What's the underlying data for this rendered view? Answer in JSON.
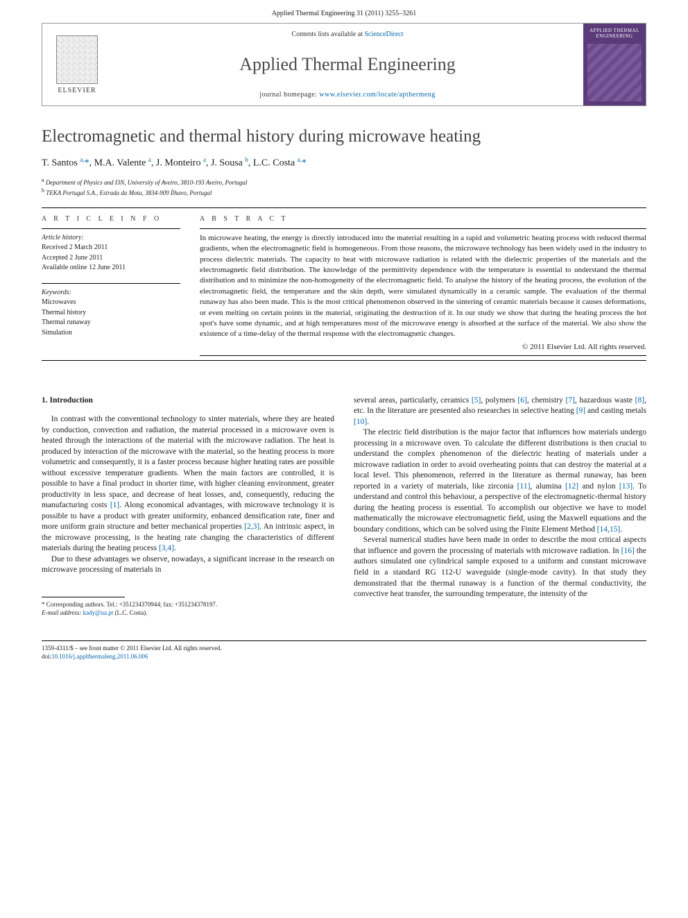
{
  "header_citation": "Applied Thermal Engineering 31 (2011) 3255–3261",
  "banner": {
    "publisher": "ELSEVIER",
    "contents_prefix": "Contents lists available at ",
    "contents_link": "ScienceDirect",
    "journal": "Applied Thermal Engineering",
    "homepage_prefix": "journal homepage: ",
    "homepage_url": "www.elsevier.com/locate/apthermeng",
    "cover_title": "APPLIED THERMAL ENGINEERING"
  },
  "article": {
    "title": "Electromagnetic and thermal history during microwave heating",
    "authors_html": "T. Santos <sup>a,</sup><span class='star'>*</span>, M.A. Valente <sup>a</sup>, J. Monteiro <sup>a</sup>, J. Sousa <sup>b</sup>, L.C. Costa <sup>a,</sup><span class='star'>*</span>",
    "affiliations": [
      "a Department of Physics and I3N, University of Aveiro, 3810-193 Aveiro, Portugal",
      "b TEKA Portugal S.A., Estrada da Mota, 3834-909 Ílhavo, Portugal"
    ]
  },
  "info": {
    "heading": "A R T I C L E   I N F O",
    "history_label": "Article history:",
    "history": [
      "Received 2 March 2011",
      "Accepted 2 June 2011",
      "Available online 12 June 2011"
    ],
    "keywords_label": "Keywords:",
    "keywords": [
      "Microwaves",
      "Thermal history",
      "Thermal runaway",
      "Simulation"
    ]
  },
  "abstract": {
    "heading": "A B S T R A C T",
    "text": "In microwave heating, the energy is directly introduced into the material resulting in a rapid and volumetric heating process with reduced thermal gradients, when the electromagnetic field is homogeneous. From those reasons, the microwave technology has been widely used in the industry to process dielectric materials. The capacity to heat with microwave radiation is related with the dielectric properties of the materials and the electromagnetic field distribution. The knowledge of the permittivity dependence with the temperature is essential to understand the thermal distribution and to minimize the non-homogeneity of the electromagnetic field. To analyse the history of the heating process, the evolution of the electromagnetic field, the temperature and the skin depth, were simulated dynamically in a ceramic sample. The evaluation of the thermal runaway has also been made. This is the most critical phenomenon observed in the sintering of ceramic materials because it causes deformations, or even melting on certain points in the material, originating the destruction of it. In our study we show that during the heating process the hot spot's have some dynamic, and at high temperatures most of the microwave energy is absorbed at the surface of the material. We also show the existence of a time-delay of the thermal response with the electromagnetic changes.",
    "copyright": "© 2011 Elsevier Ltd. All rights reserved."
  },
  "body": {
    "section1_head": "1. Introduction",
    "col1_p1": "In contrast with the conventional technology to sinter materials, where they are heated by conduction, convection and radiation, the material processed in a microwave oven is heated through the interactions of the material with the microwave radiation. The heat is produced by interaction of the microwave with the material, so the heating process is more volumetric and consequently, it is a faster process because higher heating rates are possible without excessive temperature gradients. When the main factors are controlled, it is possible to have a final product in shorter time, with higher cleaning environment, greater productivity in less space, and decrease of heat losses, and, consequently, reducing the manufacturing costs [1]. Along economical advantages, with microwave technology it is possible to have a product with greater uniformity, enhanced densification rate, finer and more uniform grain structure and better mechanical properties [2,3]. An intrinsic aspect, in the microwave processing, is the heating rate changing the characteristics of different materials during the heating process [3,4].",
    "col1_p2": "Due to these advantages we observe, nowadays, a significant increase in the research on microwave processing of materials in",
    "col2_p1": "several areas, particularly, ceramics [5], polymers [6], chemistry [7], hazardous waste [8], etc. In the literature are presented also researches in selective heating [9] and casting metals [10].",
    "col2_p2": "The electric field distribution is the major factor that influences how materials undergo processing in a microwave oven. To calculate the different distributions is then crucial to understand the complex phenomenon of the dielectric heating of materials under a microwave radiation in order to avoid overheating points that can destroy the material at a local level. This phenomenon, referred in the literature as thermal runaway, has been reported in a variety of materials, like zirconia [11], alumina [12] and nylon [13]. To understand and control this behaviour, a perspective of the electromagnetic-thermal history during the heating process is essential. To accomplish our objective we have to model mathematically the microwave electromagnetic field, using the Maxwell equations and the boundary conditions, which can be solved using the Finite Element Method [14,15].",
    "col2_p3": "Several numerical studies have been made in order to describe the most critical aspects that influence and govern the processing of materials with microwave radiation. In [16] the authors simulated one cylindrical sample exposed to a uniform and constant microwave field in a standard RG 112-U waveguide (single-mode cavity). In that study they demonstrated that the thermal runaway is a function of the thermal conductivity, the convective heat transfer, the surrounding temperature, the intensity of the"
  },
  "footnote": {
    "corr_label": "* Corresponding authors. Tel.: +351234370944; fax: +351234378197.",
    "email_label": "E-mail address:",
    "email": "kady@ua.pt",
    "email_person": "(L.C. Costa)."
  },
  "bottom": {
    "issn_line": "1359-4311/$ – see front matter © 2011 Elsevier Ltd. All rights reserved.",
    "doi_label": "doi:",
    "doi": "10.1016/j.applthermaleng.2011.06.006"
  },
  "refs": {
    "r1": "[1]",
    "r23": "[2,3]",
    "r34": "[3,4]",
    "r5": "[5]",
    "r6": "[6]",
    "r7": "[7]",
    "r8": "[8]",
    "r9": "[9]",
    "r10": "[10]",
    "r11": "[11]",
    "r12": "[12]",
    "r13": "[13]",
    "r1415": "[14,15]",
    "r16": "[16]"
  }
}
